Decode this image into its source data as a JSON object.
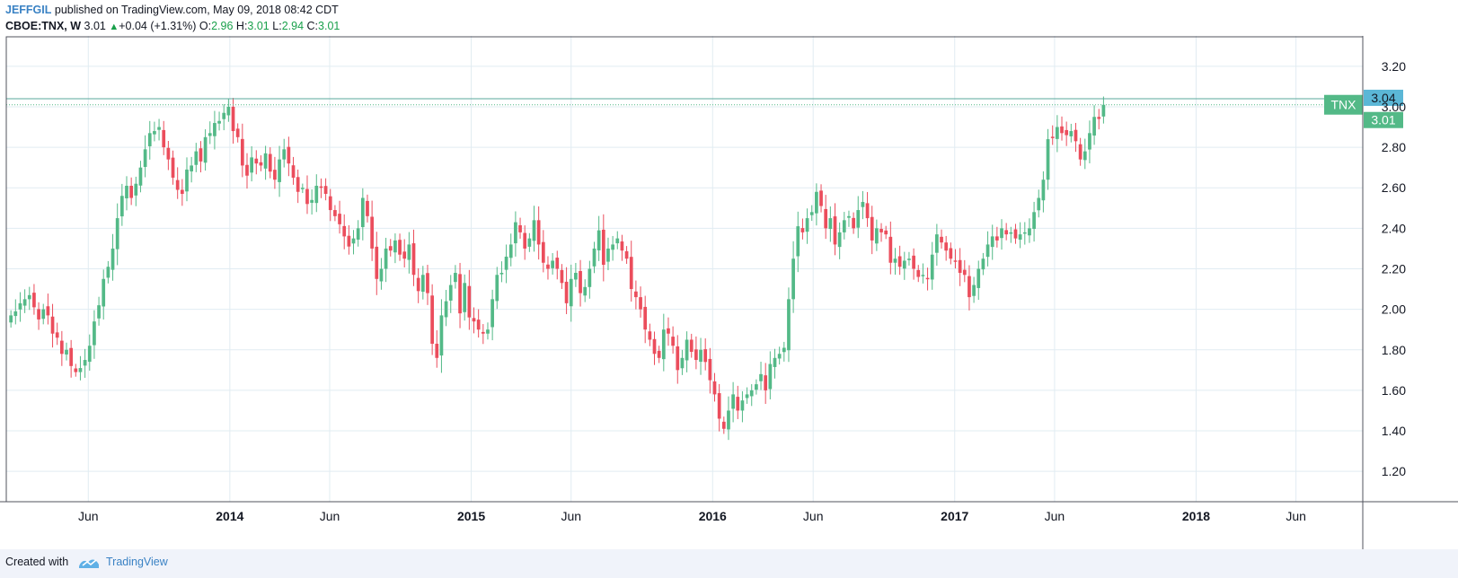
{
  "header": {
    "author": "JEFFGIL",
    "published": " published on TradingView.com, May 09, 2018 08:42 CDT",
    "symbol": "CBOE:TNX, W",
    "last": "3.01",
    "change": "+0.04 (+1.31%)",
    "o_label": "O:",
    "o_value": "2.96",
    "h_label": "H:",
    "h_value": "3.01",
    "l_label": "L:",
    "l_value": "2.94",
    "c_label": "C:",
    "c_value": "3.01"
  },
  "footer": {
    "created_with": "Created with",
    "brand": "TradingView"
  },
  "colors": {
    "up": "#53b987",
    "down": "#eb4d5c",
    "grid": "#e1ecf2",
    "price_line": "#5aa89b",
    "label_tnx": "#53b987",
    "label_304": "#5bb7d6"
  },
  "chart_data": {
    "type": "candlestick",
    "symbol_label": "TNX",
    "y_ticks": [
      "1.20",
      "1.40",
      "1.60",
      "1.80",
      "2.00",
      "2.20",
      "2.40",
      "2.60",
      "2.80",
      "3.00",
      "3.20"
    ],
    "ylim": [
      1.05,
      3.35
    ],
    "x_ticks": [
      {
        "label": "Jun",
        "date": "2013-06-01",
        "bold": false
      },
      {
        "label": "2014",
        "date": "2014-01-01",
        "bold": true
      },
      {
        "label": "Jun",
        "date": "2014-06-01",
        "bold": false
      },
      {
        "label": "2015",
        "date": "2015-01-01",
        "bold": true
      },
      {
        "label": "Jun",
        "date": "2015-06-01",
        "bold": false
      },
      {
        "label": "2016",
        "date": "2016-01-01",
        "bold": true
      },
      {
        "label": "Jun",
        "date": "2016-06-01",
        "bold": false
      },
      {
        "label": "2017",
        "date": "2017-01-01",
        "bold": true
      },
      {
        "label": "Jun",
        "date": "2017-06-01",
        "bold": false
      },
      {
        "label": "2018",
        "date": "2018-01-01",
        "bold": true
      },
      {
        "label": "Jun",
        "date": "2018-06-01",
        "bold": false
      }
    ],
    "xlim": [
      "2013-01-28",
      "2018-09-10"
    ],
    "first_candle": "2013-02-04",
    "price_labels": [
      {
        "text": "3.04",
        "value": 3.04,
        "style": "dashed-line"
      },
      {
        "text": "3.01",
        "value": 3.01,
        "style": "dotted-line"
      }
    ],
    "grid": true,
    "close": [
      1.97,
      1.99,
      2.03,
      2.05,
      2.07,
      2.01,
      1.95,
      2.0,
      1.97,
      1.88,
      1.86,
      1.78,
      1.8,
      1.72,
      1.69,
      1.71,
      1.75,
      1.82,
      1.94,
      2.02,
      2.15,
      2.21,
      2.3,
      2.45,
      2.56,
      2.61,
      2.55,
      2.62,
      2.7,
      2.79,
      2.87,
      2.88,
      2.9,
      2.8,
      2.74,
      2.65,
      2.59,
      2.57,
      2.69,
      2.71,
      2.78,
      2.73,
      2.85,
      2.87,
      2.92,
      2.93,
      2.97,
      3.0,
      2.88,
      2.85,
      2.71,
      2.66,
      2.75,
      2.72,
      2.71,
      2.77,
      2.68,
      2.64,
      2.74,
      2.79,
      2.72,
      2.65,
      2.58,
      2.6,
      2.52,
      2.54,
      2.61,
      2.6,
      2.57,
      2.49,
      2.46,
      2.42,
      2.36,
      2.31,
      2.35,
      2.4,
      2.55,
      2.46,
      2.3,
      2.15,
      2.2,
      2.3,
      2.29,
      2.34,
      2.27,
      2.25,
      2.32,
      2.17,
      2.09,
      2.17,
      2.08,
      1.83,
      1.76,
      1.97,
      2.04,
      2.12,
      2.18,
      1.98,
      2.13,
      1.96,
      1.94,
      1.9,
      1.88,
      1.9,
      2.05,
      2.17,
      2.18,
      2.26,
      2.32,
      2.43,
      2.38,
      2.3,
      2.35,
      2.44,
      2.32,
      2.23,
      2.2,
      2.24,
      2.2,
      2.13,
      2.03,
      2.15,
      2.18,
      2.08,
      2.11,
      2.2,
      2.3,
      2.39,
      2.22,
      2.3,
      2.32,
      2.35,
      2.29,
      2.25,
      2.1,
      2.06,
      2.0,
      1.9,
      1.85,
      1.78,
      1.76,
      1.9,
      1.88,
      1.82,
      1.7,
      1.76,
      1.85,
      1.79,
      1.75,
      1.8,
      1.74,
      1.65,
      1.58,
      1.46,
      1.41,
      1.5,
      1.58,
      1.5,
      1.55,
      1.58,
      1.6,
      1.63,
      1.68,
      1.6,
      1.73,
      1.76,
      1.78,
      1.81,
      2.05,
      2.25,
      2.41,
      2.38,
      2.45,
      2.48,
      2.58,
      2.51,
      2.4,
      2.45,
      2.32,
      2.38,
      2.44,
      2.46,
      2.4,
      2.49,
      2.53,
      2.45,
      2.34,
      2.4,
      2.38,
      2.37,
      2.23,
      2.25,
      2.21,
      2.24,
      2.25,
      2.2,
      2.16,
      2.17,
      2.15,
      2.27,
      2.37,
      2.33,
      2.29,
      2.25,
      2.24,
      2.18,
      2.17,
      2.06,
      2.12,
      2.2,
      2.25,
      2.32,
      2.36,
      2.34,
      2.4,
      2.37,
      2.38,
      2.35,
      2.37,
      2.38,
      2.4,
      2.48,
      2.55,
      2.64,
      2.84,
      2.85,
      2.9,
      2.87,
      2.86,
      2.88,
      2.83,
      2.74,
      2.78,
      2.87,
      2.95,
      2.94,
      3.01
    ]
  }
}
